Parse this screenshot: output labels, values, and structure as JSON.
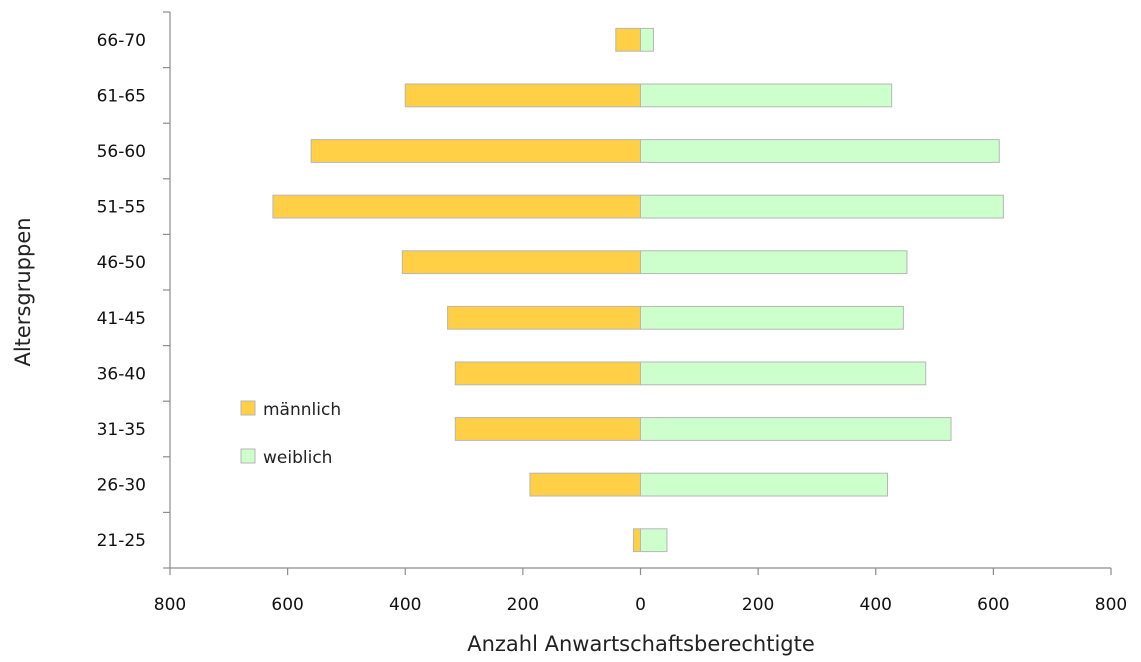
{
  "chart_data": {
    "type": "bar",
    "orientation": "horizontal",
    "layout": "population-pyramid",
    "xlabel": "Anzahl Anwartschaftsberechtigte",
    "ylabel": "Altersgruppen",
    "xlim": [
      -800,
      800
    ],
    "x_ticks": [
      -800,
      -600,
      -400,
      -200,
      0,
      200,
      400,
      600,
      800
    ],
    "x_tick_labels": [
      "800",
      "600",
      "400",
      "200",
      "0",
      "200",
      "400",
      "600",
      "800"
    ],
    "categories": [
      "21-25",
      "26-30",
      "31-35",
      "36-40",
      "41-45",
      "46-50",
      "51-55",
      "56-60",
      "61-65",
      "66-70"
    ],
    "series": [
      {
        "name": "männlich",
        "color": "#ffd046",
        "side": "left",
        "values": [
          12,
          188,
          315,
          315,
          328,
          405,
          625,
          560,
          400,
          42
        ]
      },
      {
        "name": "weiblich",
        "color": "#ccffcc",
        "side": "right",
        "values": [
          45,
          420,
          528,
          485,
          447,
          453,
          617,
          610,
          427,
          22
        ]
      }
    ],
    "grid": false,
    "legend": {
      "placement": "inside-left",
      "entries": [
        "männlich",
        "weiblich"
      ]
    }
  }
}
